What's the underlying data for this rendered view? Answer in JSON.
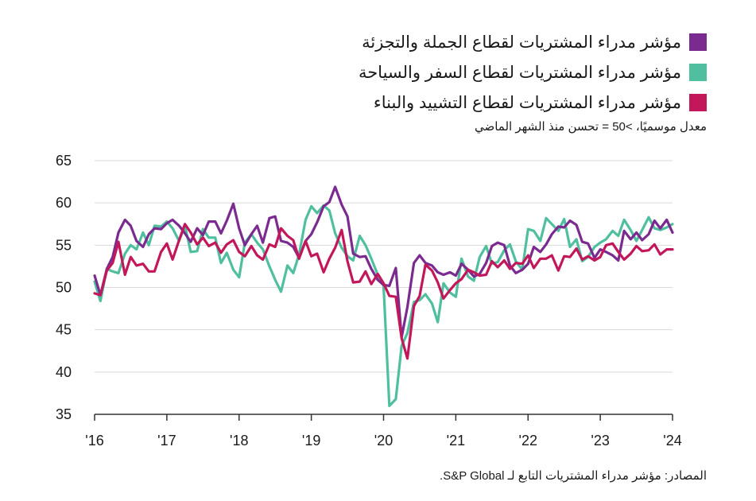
{
  "legend": {
    "items": [
      {
        "label": "مؤشر مدراء المشتريات لقطاع الجملة والتجزئة",
        "color": "#7b2b8f"
      },
      {
        "label": "مؤشر مدراء المشتريات لقطاع السفر والسياحة",
        "color": "#4fbf9f"
      },
      {
        "label": "مؤشر مدراء المشتريات لقطاع التشييد والبناء",
        "color": "#c2185b"
      }
    ]
  },
  "subtitle": "معدل موسميًا، >50 = تحسن منذ الشهر الماضي",
  "source": "المصادر: مؤشر مدراء المشتريات التابع لـ S&P Global.",
  "chart_data": {
    "type": "line",
    "ylim": [
      35,
      65
    ],
    "yticks": [
      35,
      40,
      45,
      50,
      55,
      60,
      65
    ],
    "xlim": [
      2016.0,
      2024.0
    ],
    "xticks": [
      {
        "value": 2016,
        "label": "'16"
      },
      {
        "value": 2017,
        "label": "'17"
      },
      {
        "value": 2018,
        "label": "'18"
      },
      {
        "value": 2019,
        "label": "'19"
      },
      {
        "value": 2020,
        "label": "'20"
      },
      {
        "value": 2021,
        "label": "'21"
      },
      {
        "value": 2022,
        "label": "'22"
      },
      {
        "value": 2023,
        "label": "'23"
      },
      {
        "value": 2024,
        "label": "'24"
      }
    ],
    "grid": true,
    "series": [
      {
        "name": "مؤشر مدراء المشتريات لقطاع السفر والسياحة",
        "color": "#4fbf9f",
        "x": [
          2016.0,
          2016.08,
          2016.17,
          2016.25,
          2016.33,
          2016.42,
          2016.5,
          2016.58,
          2016.67,
          2016.75,
          2016.83,
          2016.92,
          2017.0,
          2017.08,
          2017.17,
          2017.25,
          2017.33,
          2017.42,
          2017.5,
          2017.58,
          2017.67,
          2017.75,
          2017.83,
          2017.92,
          2018.0,
          2018.08,
          2018.17,
          2018.25,
          2018.33,
          2018.42,
          2018.5,
          2018.58,
          2018.67,
          2018.75,
          2018.83,
          2018.92,
          2019.0,
          2019.08,
          2019.17,
          2019.25,
          2019.33,
          2019.42,
          2019.5,
          2019.58,
          2019.67,
          2019.75,
          2019.83,
          2019.92,
          2020.0,
          2020.08,
          2020.17,
          2020.25,
          2020.33,
          2020.42,
          2020.5,
          2020.58,
          2020.67,
          2020.75,
          2020.83,
          2020.92,
          2021.0,
          2021.08,
          2021.17,
          2021.25,
          2021.33,
          2021.42,
          2021.5,
          2021.58,
          2021.67,
          2021.75,
          2021.83,
          2021.92,
          2022.0,
          2022.08,
          2022.17,
          2022.25,
          2022.33,
          2022.42,
          2022.5,
          2022.58,
          2022.67,
          2022.75,
          2022.83,
          2022.92,
          2023.0,
          2023.08,
          2023.17,
          2023.25,
          2023.33,
          2023.42,
          2023.5,
          2023.58,
          2023.67,
          2023.75,
          2023.83,
          2023.92,
          2024.0
        ],
        "y": [
          50.7,
          48.4,
          52.2,
          51.9,
          51.7,
          54.0,
          55.0,
          54.5,
          56.5,
          55.0,
          57.3,
          57.2,
          57.8,
          57.0,
          55.5,
          57.3,
          54.2,
          54.3,
          56.9,
          55.9,
          55.9,
          52.9,
          54.1,
          52.1,
          51.2,
          55.3,
          56.3,
          55.3,
          54.5,
          52.5,
          50.9,
          49.5,
          52.6,
          51.7,
          53.9,
          58.0,
          59.6,
          58.8,
          59.7,
          59.1,
          56.4,
          54.7,
          53.7,
          53.2,
          56.1,
          55.0,
          53.4,
          51.5,
          50.2,
          36.0,
          36.8,
          43.1,
          44.6,
          48.3,
          48.5,
          49.2,
          48.1,
          45.9,
          50.5,
          49.4,
          48.9,
          53.4,
          51.3,
          50.8,
          53.6,
          54.9,
          52.8,
          53.0,
          54.4,
          55.1,
          53.1,
          52.1,
          56.9,
          56.7,
          55.5,
          58.2,
          57.5,
          56.7,
          58.1,
          54.8,
          55.7,
          53.1,
          53.6,
          54.8,
          55.3,
          55.7,
          56.7,
          56.1,
          58.0,
          56.8,
          55.5,
          56.8,
          58.3,
          57.0,
          56.8,
          57.1,
          57.5
        ]
      },
      {
        "name": "مؤشر مدراء المشتريات لقطاع الجملة والتجزئة",
        "color": "#7b2b8f",
        "x": [
          2016.0,
          2016.08,
          2016.17,
          2016.25,
          2016.33,
          2016.42,
          2016.5,
          2016.58,
          2016.67,
          2016.75,
          2016.83,
          2016.92,
          2017.0,
          2017.08,
          2017.17,
          2017.25,
          2017.33,
          2017.42,
          2017.5,
          2017.58,
          2017.67,
          2017.75,
          2017.83,
          2017.92,
          2018.0,
          2018.08,
          2018.17,
          2018.25,
          2018.33,
          2018.42,
          2018.5,
          2018.58,
          2018.67,
          2018.75,
          2018.83,
          2018.92,
          2019.0,
          2019.08,
          2019.17,
          2019.25,
          2019.33,
          2019.42,
          2019.5,
          2019.58,
          2019.67,
          2019.75,
          2019.83,
          2019.92,
          2020.0,
          2020.08,
          2020.17,
          2020.25,
          2020.33,
          2020.42,
          2020.5,
          2020.58,
          2020.67,
          2020.75,
          2020.83,
          2020.92,
          2021.0,
          2021.08,
          2021.17,
          2021.25,
          2021.33,
          2021.42,
          2021.5,
          2021.58,
          2021.67,
          2021.75,
          2021.83,
          2021.92,
          2022.0,
          2022.08,
          2022.17,
          2022.25,
          2022.33,
          2022.42,
          2022.5,
          2022.58,
          2022.67,
          2022.75,
          2022.83,
          2022.92,
          2023.0,
          2023.08,
          2023.17,
          2023.25,
          2023.33,
          2023.42,
          2023.5,
          2023.58,
          2023.67,
          2023.75,
          2023.83,
          2023.92,
          2024.0
        ],
        "y": [
          51.4,
          49.1,
          52.2,
          53.6,
          56.5,
          58.0,
          57.3,
          55.5,
          54.8,
          56.3,
          57.0,
          56.9,
          57.6,
          58.0,
          57.3,
          56.4,
          55.4,
          57.0,
          56.2,
          57.8,
          57.8,
          56.4,
          57.9,
          59.9,
          57.0,
          55.0,
          56.3,
          57.3,
          55.3,
          58.2,
          58.4,
          55.5,
          55.3,
          54.8,
          53.5,
          55.5,
          56.3,
          57.7,
          59.6,
          60.1,
          61.9,
          59.8,
          58.4,
          54.0,
          53.6,
          53.7,
          52.2,
          50.9,
          50.3,
          50.2,
          52.3,
          44.1,
          47.7,
          52.9,
          53.8,
          52.9,
          52.6,
          51.8,
          51.5,
          51.8,
          51.4,
          52.8,
          52.1,
          51.3,
          51.6,
          52.9,
          54.9,
          55.3,
          55.0,
          52.6,
          51.7,
          52.1,
          52.8,
          54.8,
          54.2,
          55.1,
          56.3,
          57.2,
          57.1,
          57.9,
          57.4,
          55.4,
          55.2,
          53.5,
          54.5,
          54.2,
          53.8,
          53.2,
          56.7,
          55.7,
          56.5,
          55.6,
          56.3,
          57.9,
          57.0,
          58.0,
          56.5
        ]
      },
      {
        "name": "مؤشر مدراء المشتريات لقطاع التشييد والبناء",
        "color": "#c2185b",
        "x": [
          2016.0,
          2016.08,
          2016.17,
          2016.25,
          2016.33,
          2016.42,
          2016.5,
          2016.58,
          2016.67,
          2016.75,
          2016.83,
          2016.92,
          2017.0,
          2017.08,
          2017.17,
          2017.25,
          2017.33,
          2017.42,
          2017.5,
          2017.58,
          2017.67,
          2017.75,
          2017.83,
          2017.92,
          2018.0,
          2018.08,
          2018.17,
          2018.25,
          2018.33,
          2018.42,
          2018.5,
          2018.58,
          2018.67,
          2018.75,
          2018.83,
          2018.92,
          2019.0,
          2019.08,
          2019.17,
          2019.25,
          2019.33,
          2019.42,
          2019.5,
          2019.58,
          2019.67,
          2019.75,
          2019.83,
          2019.92,
          2020.0,
          2020.08,
          2020.17,
          2020.25,
          2020.33,
          2020.42,
          2020.5,
          2020.58,
          2020.67,
          2020.75,
          2020.83,
          2020.92,
          2021.0,
          2021.08,
          2021.17,
          2021.25,
          2021.33,
          2021.42,
          2021.5,
          2021.58,
          2021.67,
          2021.75,
          2021.83,
          2021.92,
          2022.0,
          2022.08,
          2022.17,
          2022.25,
          2022.33,
          2022.42,
          2022.5,
          2022.58,
          2022.67,
          2022.75,
          2022.83,
          2022.92,
          2023.0,
          2023.08,
          2023.17,
          2023.25,
          2023.33,
          2023.42,
          2023.5,
          2023.58,
          2023.67,
          2023.75,
          2023.83,
          2023.92,
          2024.0
        ],
        "y": [
          49.3,
          49.1,
          52.0,
          52.9,
          55.4,
          51.5,
          53.6,
          52.6,
          52.8,
          51.9,
          51.9,
          54.2,
          55.2,
          53.3,
          55.6,
          57.5,
          56.5,
          55.1,
          55.9,
          54.9,
          55.3,
          54.1,
          55.1,
          55.6,
          54.2,
          53.7,
          54.9,
          53.8,
          53.3,
          55.1,
          54.8,
          57.0,
          56.1,
          55.6,
          53.4,
          55.5,
          53.7,
          54.0,
          51.8,
          53.4,
          54.7,
          56.8,
          53.1,
          50.6,
          50.7,
          51.9,
          50.4,
          51.6,
          50.5,
          49.0,
          48.9,
          44.0,
          41.6,
          47.8,
          49.0,
          52.7,
          52.0,
          50.6,
          48.7,
          49.7,
          50.5,
          51.0,
          52.1,
          51.8,
          51.4,
          51.5,
          53.1,
          52.4,
          53.2,
          52.2,
          52.9,
          52.8,
          53.8,
          52.3,
          53.4,
          53.4,
          53.8,
          52.0,
          53.7,
          53.6,
          54.6,
          53.3,
          53.7,
          53.2,
          53.6,
          55.0,
          55.2,
          54.2,
          53.3,
          54.0,
          54.9,
          54.3,
          54.4,
          55.1,
          53.9,
          54.5,
          54.5
        ]
      }
    ]
  }
}
